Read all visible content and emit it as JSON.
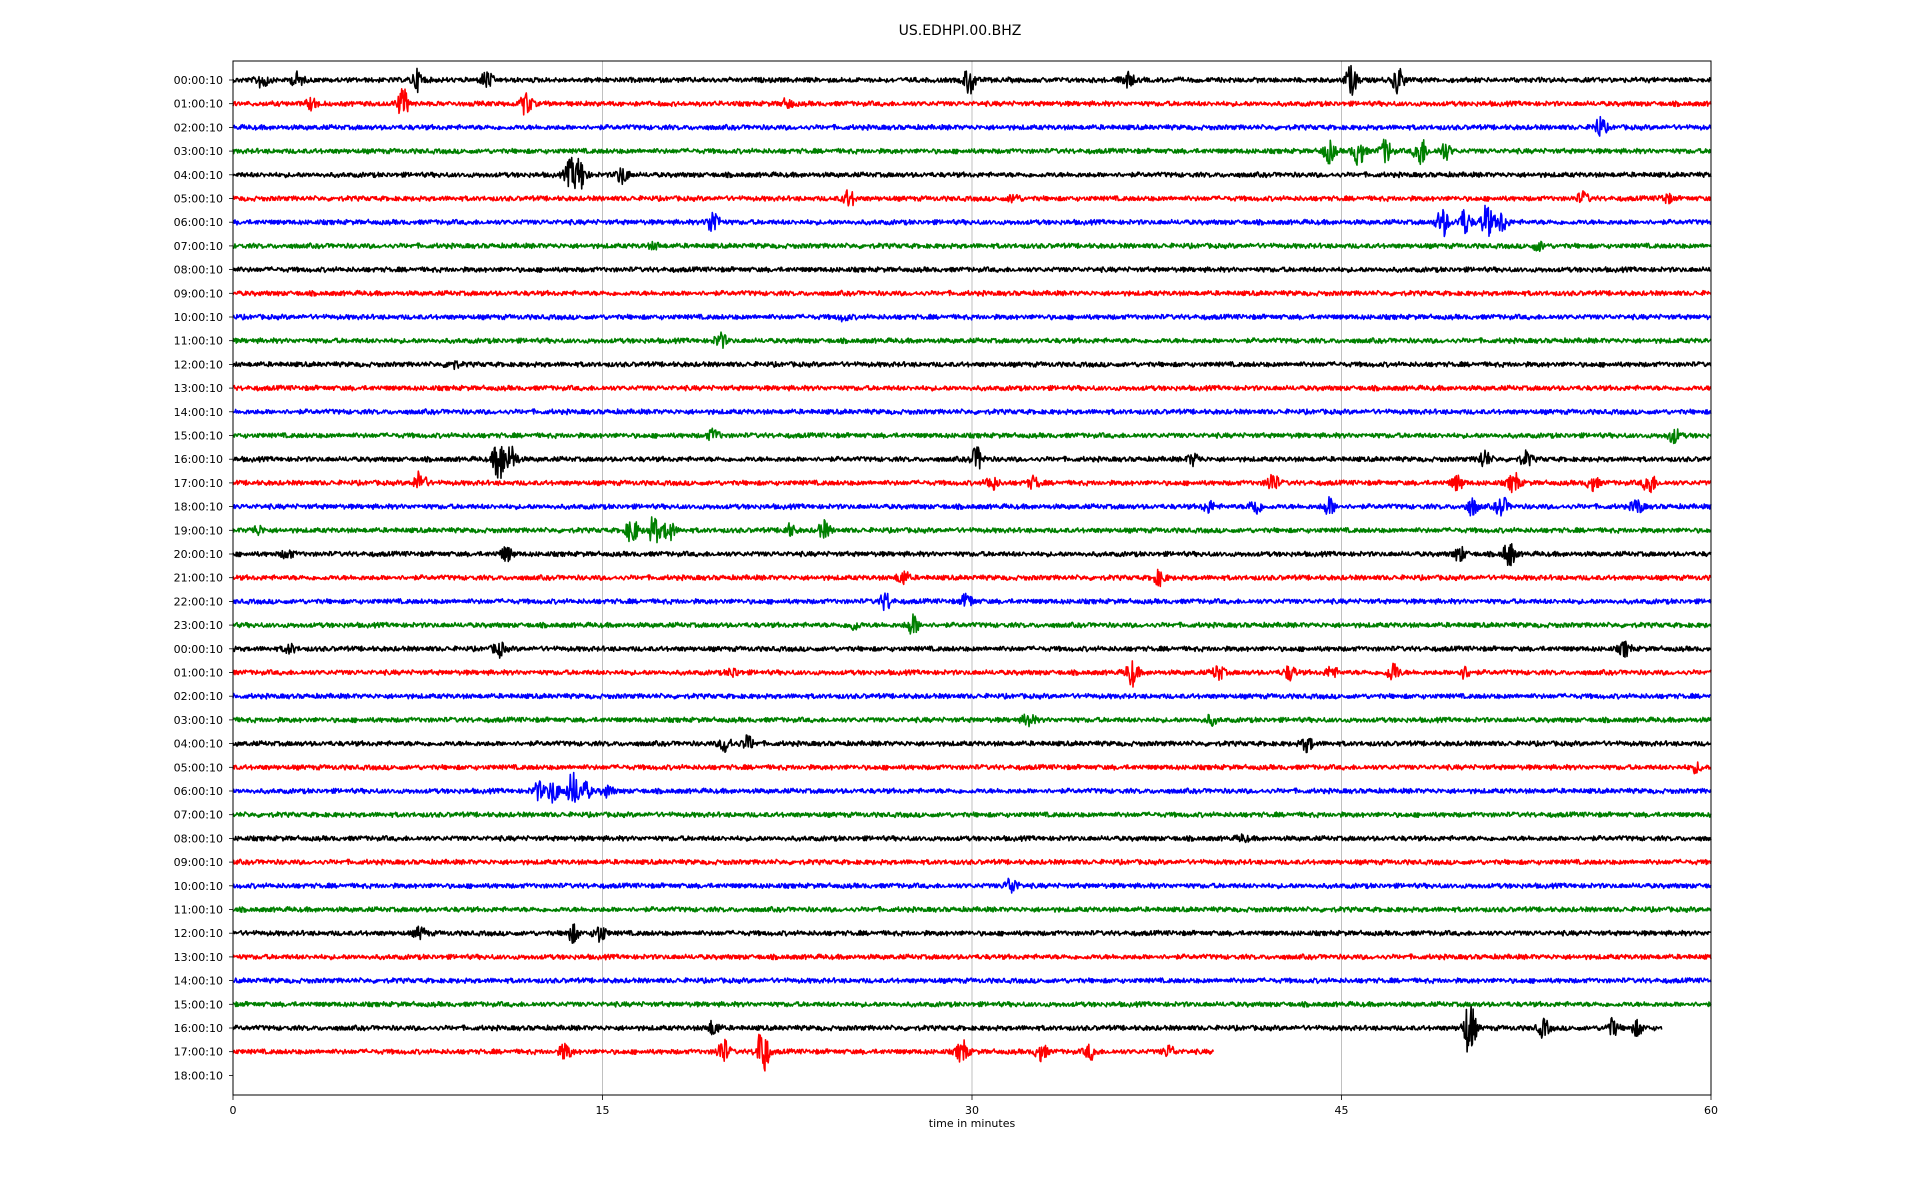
{
  "chart_data": {
    "type": "line",
    "title": "US.EDHPI.00.BHZ",
    "xlabel": "time in minutes",
    "ylabel": "",
    "xlim": [
      0,
      60
    ],
    "x_ticks": [
      0,
      15,
      30,
      45,
      60
    ],
    "x_tick_labels": [
      "0",
      "15",
      "30",
      "45",
      "60"
    ],
    "grid": "vertical lines at 15, 30, 45",
    "color_cycle": [
      "#000000",
      "#ff0000",
      "#0000ff",
      "#008000"
    ],
    "row_labels": [
      "00:00:10",
      "01:00:10",
      "02:00:10",
      "03:00:10",
      "04:00:10",
      "05:00:10",
      "06:00:10",
      "07:00:10",
      "08:00:10",
      "09:00:10",
      "10:00:10",
      "11:00:10",
      "12:00:10",
      "13:00:10",
      "14:00:10",
      "15:00:10",
      "16:00:10",
      "17:00:10",
      "18:00:10",
      "19:00:10",
      "20:00:10",
      "21:00:10",
      "22:00:10",
      "23:00:10",
      "00:00:10",
      "01:00:10",
      "02:00:10",
      "03:00:10",
      "04:00:10",
      "05:00:10",
      "06:00:10",
      "07:00:10",
      "08:00:10",
      "09:00:10",
      "10:00:10",
      "11:00:10",
      "12:00:10",
      "13:00:10",
      "14:00:10",
      "15:00:10",
      "16:00:10",
      "17:00:10",
      "18:00:10"
    ],
    "traces_end_minute": [
      60,
      60,
      60,
      60,
      60,
      60,
      60,
      60,
      60,
      60,
      60,
      60,
      60,
      60,
      60,
      60,
      60,
      60,
      60,
      60,
      60,
      60,
      60,
      60,
      60,
      60,
      60,
      60,
      60,
      60,
      60,
      60,
      60,
      60,
      60,
      60,
      60,
      60,
      60,
      60,
      58.0,
      39.8,
      0
    ],
    "events": [
      [
        [
          1.2,
          0.6
        ],
        [
          2.6,
          0.5
        ],
        [
          7.5,
          0.7
        ],
        [
          10.3,
          0.6
        ],
        [
          29.9,
          1.0
        ],
        [
          36.3,
          0.6
        ],
        [
          45.4,
          1.0
        ],
        [
          47.3,
          0.9
        ]
      ],
      [
        [
          3.2,
          0.4
        ],
        [
          6.9,
          1.0
        ],
        [
          11.9,
          0.8
        ],
        [
          22.5,
          0.3
        ]
      ],
      [
        [
          55.5,
          0.7
        ]
      ],
      [
        [
          44.5,
          0.8
        ],
        [
          45.7,
          1.0
        ],
        [
          46.8,
          0.8
        ],
        [
          48.2,
          1.1
        ],
        [
          49.2,
          0.6
        ]
      ],
      [
        [
          13.7,
          1.0
        ],
        [
          14.1,
          1.1
        ],
        [
          15.8,
          0.6
        ]
      ],
      [
        [
          25.0,
          0.6
        ],
        [
          31.7,
          0.3
        ],
        [
          54.8,
          0.4
        ],
        [
          58.2,
          0.3
        ]
      ],
      [
        [
          19.5,
          0.9
        ],
        [
          49.1,
          1.0
        ],
        [
          50.0,
          0.9
        ],
        [
          50.9,
          1.2
        ],
        [
          51.5,
          0.7
        ]
      ],
      [
        [
          17.1,
          0.2
        ],
        [
          53.0,
          0.3
        ]
      ],
      [],
      [],
      [
        [
          24.8,
          0.2
        ]
      ],
      [
        [
          19.8,
          0.5
        ]
      ],
      [
        [
          8.9,
          0.3
        ]
      ],
      [],
      [],
      [
        [
          19.5,
          0.4
        ],
        [
          58.5,
          0.5
        ]
      ],
      [
        [
          10.8,
          1.6
        ],
        [
          11.3,
          0.9
        ],
        [
          30.2,
          0.8
        ],
        [
          39.0,
          0.4
        ],
        [
          50.8,
          0.6
        ],
        [
          52.5,
          0.5
        ]
      ],
      [
        [
          7.6,
          0.8
        ],
        [
          30.8,
          0.5
        ],
        [
          32.5,
          0.4
        ],
        [
          42.2,
          0.7
        ],
        [
          49.7,
          0.5
        ],
        [
          52.0,
          0.7
        ],
        [
          55.2,
          0.5
        ],
        [
          57.5,
          0.8
        ]
      ],
      [
        [
          39.6,
          0.4
        ],
        [
          41.5,
          0.6
        ],
        [
          44.5,
          0.6
        ],
        [
          50.3,
          0.6
        ],
        [
          51.5,
          0.7
        ],
        [
          57.0,
          0.5
        ]
      ],
      [
        [
          1.0,
          0.3
        ],
        [
          16.2,
          0.9
        ],
        [
          17.1,
          1.0
        ],
        [
          17.7,
          0.7
        ],
        [
          22.6,
          0.4
        ],
        [
          24.0,
          0.6
        ]
      ],
      [
        [
          2.2,
          0.3
        ],
        [
          11.1,
          0.5
        ],
        [
          49.8,
          0.5
        ],
        [
          51.8,
          0.9
        ]
      ],
      [
        [
          27.2,
          0.5
        ],
        [
          37.6,
          0.5
        ]
      ],
      [
        [
          26.5,
          0.6
        ],
        [
          29.8,
          0.5
        ]
      ],
      [
        [
          25.2,
          0.3
        ],
        [
          27.6,
          0.7
        ]
      ],
      [
        [
          2.3,
          0.3
        ],
        [
          10.8,
          0.5
        ],
        [
          56.5,
          0.5
        ]
      ],
      [
        [
          20.3,
          0.3
        ],
        [
          36.5,
          0.9
        ],
        [
          40.0,
          0.5
        ],
        [
          42.9,
          0.5
        ],
        [
          44.6,
          0.4
        ],
        [
          47.1,
          0.7
        ],
        [
          50.0,
          0.4
        ]
      ],
      [],
      [
        [
          32.3,
          0.5
        ],
        [
          39.7,
          0.3
        ]
      ],
      [
        [
          20.0,
          0.6
        ],
        [
          20.9,
          0.5
        ],
        [
          43.6,
          0.5
        ]
      ],
      [
        [
          59.4,
          0.3
        ]
      ],
      [
        [
          12.4,
          0.6
        ],
        [
          13.0,
          0.8
        ],
        [
          13.8,
          1.3
        ],
        [
          14.3,
          0.6
        ],
        [
          15.2,
          0.4
        ]
      ],
      [],
      [
        [
          41.0,
          0.2
        ]
      ],
      [],
      [
        [
          31.6,
          0.6
        ]
      ],
      [],
      [
        [
          7.6,
          0.4
        ],
        [
          13.8,
          0.6
        ],
        [
          14.9,
          0.6
        ]
      ],
      [],
      [],
      [],
      [
        [
          19.5,
          0.5
        ],
        [
          50.2,
          2.0
        ],
        [
          53.2,
          0.6
        ],
        [
          56.0,
          0.6
        ],
        [
          57.0,
          0.5
        ]
      ],
      [
        [
          13.5,
          0.6
        ],
        [
          19.9,
          0.9
        ],
        [
          21.5,
          1.8
        ],
        [
          29.6,
          0.8
        ],
        [
          32.8,
          0.6
        ],
        [
          34.8,
          0.5
        ],
        [
          38.0,
          0.4
        ]
      ],
      []
    ]
  }
}
